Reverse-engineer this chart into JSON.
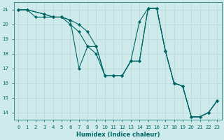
{
  "xlabel": "Humidex (Indice chaleur)",
  "ylabel": "",
  "background_color": "#ceeaea",
  "line_color": "#006666",
  "grid_color": "#b8d8d8",
  "xlim": [
    -0.5,
    23.5
  ],
  "ylim": [
    13.5,
    21.5
  ],
  "yticks": [
    14,
    15,
    16,
    17,
    18,
    19,
    20,
    21
  ],
  "xticks": [
    0,
    1,
    2,
    3,
    4,
    5,
    6,
    7,
    8,
    9,
    10,
    11,
    12,
    13,
    14,
    15,
    16,
    17,
    18,
    19,
    20,
    21,
    22,
    23
  ],
  "lines": [
    {
      "x": [
        0,
        1,
        2,
        3,
        4,
        5,
        6,
        7,
        8,
        9,
        10,
        11,
        12,
        13,
        14,
        15,
        16,
        17,
        18,
        19,
        20,
        21,
        22,
        23
      ],
      "y": [
        21.0,
        21.0,
        20.5,
        20.5,
        20.5,
        20.5,
        20.0,
        19.5,
        18.5,
        18.0,
        16.5,
        16.5,
        16.5,
        17.5,
        17.5,
        21.1,
        21.1,
        18.2,
        16.0,
        15.8,
        13.7,
        13.7,
        14.0,
        14.8
      ]
    },
    {
      "x": [
        0,
        1,
        3,
        4,
        5,
        6,
        7,
        8,
        9,
        10,
        11,
        12,
        13,
        14,
        15,
        16,
        17,
        18,
        19,
        20,
        21,
        22,
        23
      ],
      "y": [
        21.0,
        21.0,
        20.7,
        20.5,
        20.5,
        20.3,
        20.0,
        19.5,
        18.5,
        16.5,
        16.5,
        16.5,
        17.5,
        20.2,
        21.1,
        21.1,
        18.2,
        16.0,
        15.8,
        13.7,
        13.7,
        14.0,
        14.8
      ]
    },
    {
      "x": [
        0,
        1,
        3,
        4,
        5,
        6,
        7,
        8,
        9,
        10,
        11,
        12,
        13,
        14,
        15,
        16,
        17,
        18,
        19,
        20,
        21,
        22,
        23
      ],
      "y": [
        21.0,
        21.0,
        20.7,
        20.5,
        20.5,
        20.3,
        17.0,
        18.5,
        18.5,
        16.5,
        16.5,
        16.5,
        17.5,
        17.5,
        21.1,
        21.1,
        18.2,
        16.0,
        15.8,
        13.7,
        13.7,
        14.0,
        14.8
      ]
    }
  ],
  "marker": "D",
  "marker_size": 2.0,
  "linewidth": 0.8,
  "tick_fontsize": 5.0,
  "xlabel_fontsize": 6.0
}
